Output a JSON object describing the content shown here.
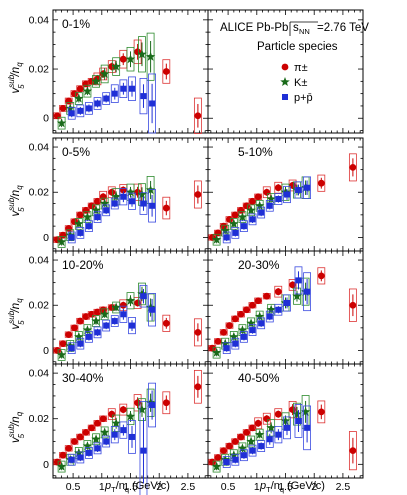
{
  "figure": {
    "collision_label": "ALICE Pb-Pb",
    "sqrt_label": "s",
    "sqrt_sub": "NN",
    "energy_label": "=2.76 TeV",
    "legend_title": "Particle species",
    "ylabel_v": "v",
    "ylabel_sup": "sub",
    "ylabel_sub": "5",
    "ylabel_rest": "/n",
    "ylabel_rest_sub": "q",
    "xlabel_p": "p",
    "xlabel_p_sub": "T",
    "xlabel_rest": "/n",
    "xlabel_rest_sub": "q",
    "xlabel_units": "(GeV/c)"
  },
  "chart_data": {
    "type": "scatter",
    "x_ticks": [
      "0.5",
      "1",
      "1.5",
      "2",
      "2.5"
    ],
    "y_ticks": [
      "0",
      "0.02",
      "0.04"
    ],
    "xlim": [
      0.15,
      2.85
    ],
    "ylim": [
      -0.006,
      0.044
    ],
    "series_styles": [
      {
        "label": "π±",
        "marker": "circle",
        "color": "#cc0000",
        "sys_color": "#dd3333"
      },
      {
        "label": "K±",
        "marker": "star",
        "color": "#1a6b1a",
        "sys_color": "#2e8b2e"
      },
      {
        "label": "p+p̄",
        "marker": "square",
        "color": "#1f2fd6",
        "sys_color": "#3a4ae0"
      }
    ],
    "panels": [
      {
        "label": "0-1%",
        "legend": true,
        "pions": {
          "x": [
            0.25,
            0.35,
            0.45,
            0.55,
            0.65,
            0.75,
            0.85,
            0.95,
            1.05,
            1.2,
            1.4,
            1.65,
            2.15,
            2.7
          ],
          "y": [
            0.001,
            0.004,
            0.007,
            0.01,
            0.012,
            0.014,
            0.015,
            0.016,
            0.018,
            0.021,
            0.024,
            0.027,
            0.019,
            0.001
          ],
          "err": [
            0.001,
            0.001,
            0.001,
            0.001,
            0.001,
            0.001,
            0.001,
            0.002,
            0.002,
            0.002,
            0.003,
            0.004,
            0.004,
            0.006
          ]
        },
        "kaons": {
          "x": [
            0.3,
            0.45,
            0.6,
            0.75,
            0.9,
            1.05,
            1.25,
            1.5,
            1.7,
            1.85
          ],
          "y": [
            -0.002,
            0.004,
            0.008,
            0.011,
            0.015,
            0.018,
            0.021,
            0.024,
            0.026,
            0.025
          ],
          "err": [
            0.002,
            0.002,
            0.002,
            0.002,
            0.002,
            0.003,
            0.003,
            0.004,
            0.006,
            0.008
          ]
        },
        "protons": {
          "x": [
            0.45,
            0.6,
            0.75,
            0.9,
            1.05,
            1.2,
            1.35,
            1.5,
            1.7,
            1.85
          ],
          "y": [
            0.002,
            0.003,
            0.004,
            0.006,
            0.008,
            0.01,
            0.012,
            0.012,
            0.009,
            0.006
          ],
          "err": [
            0.002,
            0.002,
            0.002,
            0.002,
            0.002,
            0.003,
            0.003,
            0.004,
            0.006,
            0.01
          ]
        }
      },
      {
        "label": "",
        "pions": {
          "x": [],
          "y": [],
          "err": []
        },
        "kaons": {
          "x": [],
          "y": [],
          "err": []
        },
        "protons": {
          "x": [],
          "y": [],
          "err": []
        }
      },
      {
        "label": "0-5%",
        "pions": {
          "x": [
            0.25,
            0.35,
            0.45,
            0.55,
            0.65,
            0.75,
            0.85,
            0.95,
            1.05,
            1.2,
            1.4,
            1.65,
            2.15,
            2.7
          ],
          "y": [
            -0.001,
            0.001,
            0.004,
            0.007,
            0.01,
            0.012,
            0.014,
            0.016,
            0.018,
            0.02,
            0.021,
            0.02,
            0.013,
            0.019
          ],
          "err": [
            0.001,
            0.001,
            0.001,
            0.001,
            0.001,
            0.001,
            0.001,
            0.001,
            0.002,
            0.002,
            0.002,
            0.003,
            0.004,
            0.005
          ]
        },
        "kaons": {
          "x": [
            0.3,
            0.45,
            0.6,
            0.75,
            0.9,
            1.05,
            1.25,
            1.5,
            1.7,
            1.85
          ],
          "y": [
            -0.002,
            0.001,
            0.006,
            0.009,
            0.012,
            0.015,
            0.018,
            0.02,
            0.019,
            0.021
          ],
          "err": [
            0.002,
            0.002,
            0.002,
            0.002,
            0.002,
            0.002,
            0.003,
            0.003,
            0.004,
            0.005
          ]
        },
        "protons": {
          "x": [
            0.45,
            0.6,
            0.75,
            0.9,
            1.05,
            1.2,
            1.35,
            1.5,
            1.7,
            1.85
          ],
          "y": [
            0.0,
            0.002,
            0.005,
            0.009,
            0.012,
            0.015,
            0.018,
            0.016,
            0.015,
            0.014
          ],
          "err": [
            0.002,
            0.002,
            0.002,
            0.002,
            0.002,
            0.002,
            0.003,
            0.003,
            0.004,
            0.006
          ]
        }
      },
      {
        "label": "5-10%",
        "pions": {
          "x": [
            0.25,
            0.35,
            0.45,
            0.55,
            0.65,
            0.75,
            0.85,
            0.95,
            1.05,
            1.2,
            1.4,
            1.65,
            2.15,
            2.7
          ],
          "y": [
            0.0,
            0.002,
            0.005,
            0.008,
            0.01,
            0.012,
            0.014,
            0.016,
            0.018,
            0.02,
            0.022,
            0.023,
            0.024,
            0.031
          ],
          "err": [
            0.001,
            0.001,
            0.001,
            0.001,
            0.001,
            0.001,
            0.001,
            0.001,
            0.001,
            0.002,
            0.002,
            0.002,
            0.003,
            0.005
          ]
        },
        "kaons": {
          "x": [
            0.3,
            0.45,
            0.6,
            0.75,
            0.9,
            1.05,
            1.25,
            1.5,
            1.7,
            1.85
          ],
          "y": [
            -0.001,
            0.003,
            0.006,
            0.009,
            0.012,
            0.014,
            0.017,
            0.02,
            0.021,
            0.022
          ],
          "err": [
            0.002,
            0.002,
            0.002,
            0.002,
            0.002,
            0.002,
            0.002,
            0.003,
            0.003,
            0.004
          ]
        },
        "protons": {
          "x": [
            0.45,
            0.6,
            0.75,
            0.9,
            1.05,
            1.2,
            1.35,
            1.5,
            1.7,
            1.85
          ],
          "y": [
            0.0,
            0.002,
            0.005,
            0.008,
            0.011,
            0.014,
            0.017,
            0.019,
            0.021,
            0.022
          ],
          "err": [
            0.002,
            0.002,
            0.002,
            0.002,
            0.002,
            0.002,
            0.002,
            0.003,
            0.003,
            0.004
          ]
        }
      },
      {
        "label": "10-20%",
        "pions": {
          "x": [
            0.25,
            0.35,
            0.45,
            0.55,
            0.65,
            0.75,
            0.85,
            0.95,
            1.05,
            1.2,
            1.4,
            1.65,
            2.15,
            2.7
          ],
          "y": [
            0.0,
            0.003,
            0.007,
            0.01,
            0.013,
            0.015,
            0.016,
            0.017,
            0.018,
            0.019,
            0.02,
            0.021,
            0.012,
            0.008
          ],
          "err": [
            0.001,
            0.001,
            0.001,
            0.001,
            0.001,
            0.001,
            0.001,
            0.001,
            0.001,
            0.001,
            0.002,
            0.002,
            0.003,
            0.005
          ]
        },
        "kaons": {
          "x": [
            0.3,
            0.45,
            0.6,
            0.75,
            0.9,
            1.05,
            1.25,
            1.5,
            1.7,
            1.85
          ],
          "y": [
            -0.002,
            0.002,
            0.006,
            0.009,
            0.013,
            0.016,
            0.019,
            0.022,
            0.025,
            0.019
          ],
          "err": [
            0.002,
            0.002,
            0.002,
            0.002,
            0.002,
            0.002,
            0.002,
            0.003,
            0.004,
            0.005
          ]
        },
        "protons": {
          "x": [
            0.45,
            0.6,
            0.75,
            0.9,
            1.05,
            1.2,
            1.35,
            1.5,
            1.7,
            1.85
          ],
          "y": [
            0.001,
            0.003,
            0.006,
            0.008,
            0.011,
            0.013,
            0.016,
            0.011,
            0.024,
            0.018
          ],
          "err": [
            0.002,
            0.002,
            0.002,
            0.002,
            0.002,
            0.002,
            0.003,
            0.003,
            0.004,
            0.006
          ]
        }
      },
      {
        "label": "20-30%",
        "pions": {
          "x": [
            0.25,
            0.35,
            0.45,
            0.55,
            0.65,
            0.75,
            0.85,
            0.95,
            1.05,
            1.2,
            1.4,
            1.65,
            2.15,
            2.7
          ],
          "y": [
            0.001,
            0.004,
            0.008,
            0.011,
            0.014,
            0.016,
            0.018,
            0.02,
            0.022,
            0.024,
            0.026,
            0.029,
            0.033,
            0.02
          ],
          "err": [
            0.001,
            0.001,
            0.001,
            0.001,
            0.001,
            0.001,
            0.001,
            0.001,
            0.001,
            0.001,
            0.002,
            0.002,
            0.003,
            0.006
          ]
        },
        "kaons": {
          "x": [
            0.3,
            0.45,
            0.6,
            0.75,
            0.9,
            1.05,
            1.25,
            1.5,
            1.7,
            1.85
          ],
          "y": [
            -0.001,
            0.003,
            0.006,
            0.009,
            0.012,
            0.015,
            0.018,
            0.021,
            0.024,
            0.026
          ],
          "err": [
            0.002,
            0.002,
            0.002,
            0.002,
            0.002,
            0.002,
            0.002,
            0.003,
            0.003,
            0.005
          ]
        },
        "protons": {
          "x": [
            0.45,
            0.6,
            0.75,
            0.9,
            1.05,
            1.2,
            1.35,
            1.5,
            1.7,
            1.85
          ],
          "y": [
            0.001,
            0.003,
            0.006,
            0.009,
            0.012,
            0.015,
            0.018,
            0.021,
            0.031,
            0.026
          ],
          "err": [
            0.002,
            0.002,
            0.002,
            0.002,
            0.002,
            0.002,
            0.002,
            0.003,
            0.005,
            0.007
          ]
        }
      },
      {
        "label": "30-40%",
        "pions": {
          "x": [
            0.25,
            0.35,
            0.45,
            0.55,
            0.65,
            0.75,
            0.85,
            0.95,
            1.05,
            1.2,
            1.4,
            1.65,
            2.15,
            2.7
          ],
          "y": [
            0.001,
            0.004,
            0.007,
            0.01,
            0.012,
            0.014,
            0.016,
            0.018,
            0.02,
            0.022,
            0.024,
            0.027,
            0.027,
            0.034
          ],
          "err": [
            0.001,
            0.001,
            0.001,
            0.001,
            0.001,
            0.001,
            0.001,
            0.001,
            0.001,
            0.002,
            0.002,
            0.003,
            0.004,
            0.006
          ]
        },
        "kaons": {
          "x": [
            0.3,
            0.45,
            0.6,
            0.75,
            0.9,
            1.05,
            1.25,
            1.5,
            1.7,
            1.85
          ],
          "y": [
            -0.001,
            0.002,
            0.005,
            0.008,
            0.011,
            0.014,
            0.018,
            0.021,
            0.024,
            0.027
          ],
          "err": [
            0.002,
            0.002,
            0.002,
            0.002,
            0.002,
            0.002,
            0.003,
            0.003,
            0.004,
            0.005
          ]
        },
        "protons": {
          "x": [
            0.45,
            0.6,
            0.75,
            0.9,
            1.05,
            1.2,
            1.35,
            1.5,
            1.7,
            1.85
          ],
          "y": [
            0.002,
            0.003,
            0.005,
            0.007,
            0.01,
            0.013,
            0.015,
            0.012,
            0.006,
            0.026
          ],
          "err": [
            0.002,
            0.002,
            0.002,
            0.002,
            0.002,
            0.003,
            0.003,
            0.006,
            0.018,
            0.008
          ]
        }
      },
      {
        "label": "40-50%",
        "pions": {
          "x": [
            0.25,
            0.35,
            0.45,
            0.55,
            0.65,
            0.75,
            0.85,
            0.95,
            1.05,
            1.2,
            1.4,
            1.65,
            2.15,
            2.7
          ],
          "y": [
            0.001,
            0.003,
            0.006,
            0.008,
            0.01,
            0.012,
            0.014,
            0.016,
            0.018,
            0.02,
            0.022,
            0.024,
            0.023,
            0.006
          ],
          "err": [
            0.001,
            0.001,
            0.001,
            0.001,
            0.001,
            0.001,
            0.001,
            0.001,
            0.002,
            0.002,
            0.002,
            0.003,
            0.004,
            0.007
          ]
        },
        "kaons": {
          "x": [
            0.3,
            0.45,
            0.6,
            0.75,
            0.9,
            1.05,
            1.25,
            1.5,
            1.7,
            1.85
          ],
          "y": [
            -0.001,
            0.002,
            0.004,
            0.007,
            0.01,
            0.013,
            0.016,
            0.019,
            0.022,
            0.023
          ],
          "err": [
            0.002,
            0.002,
            0.002,
            0.002,
            0.002,
            0.002,
            0.003,
            0.003,
            0.004,
            0.006
          ]
        },
        "protons": {
          "x": [
            0.45,
            0.6,
            0.75,
            0.9,
            1.05,
            1.2,
            1.35,
            1.5,
            1.7,
            1.85
          ],
          "y": [
            0.001,
            0.002,
            0.004,
            0.006,
            0.008,
            0.011,
            0.013,
            0.016,
            0.019,
            0.016
          ],
          "err": [
            0.002,
            0.002,
            0.002,
            0.002,
            0.002,
            0.003,
            0.003,
            0.004,
            0.006,
            0.008
          ]
        }
      }
    ]
  }
}
